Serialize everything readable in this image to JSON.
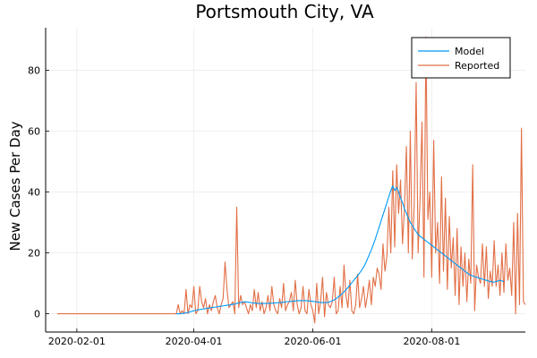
{
  "chart_data": {
    "type": "line",
    "title": "Portsmouth City, VA",
    "xlabel": "",
    "ylabel": "New Cases Per Day",
    "x_start": "2020-01-22",
    "xlim": [
      "2020-01-16",
      "2020-09-18"
    ],
    "ylim": [
      -6,
      94
    ],
    "x_ticks": [
      "2020-02-01",
      "2020-04-01",
      "2020-06-01",
      "2020-08-01"
    ],
    "y_ticks": [
      0,
      20,
      40,
      60,
      80
    ],
    "grid": true,
    "legend_position": "top-right",
    "series": [
      {
        "name": "Model",
        "color": "#009AFA",
        "x_start": "2020-03-23",
        "values": [
          0,
          0,
          0,
          0.1,
          0.2,
          0.3,
          0.5,
          0.6,
          0.8,
          1.0,
          1.1,
          1.3,
          1.4,
          1.5,
          1.6,
          1.7,
          1.8,
          1.9,
          2.0,
          2.1,
          2.2,
          2.3,
          2.4,
          2.5,
          2.6,
          2.7,
          2.8,
          2.9,
          3.0,
          3.1,
          3.2,
          3.4,
          3.6,
          3.7,
          3.8,
          3.9,
          3.9,
          3.8,
          3.7,
          3.6,
          3.5,
          3.5,
          3.4,
          3.4,
          3.4,
          3.4,
          3.4,
          3.4,
          3.5,
          3.5,
          3.5,
          3.6,
          3.6,
          3.7,
          3.7,
          3.8,
          3.9,
          4.0,
          4.0,
          4.1,
          4.2,
          4.2,
          4.3,
          4.3,
          4.3,
          4.3,
          4.3,
          4.3,
          4.2,
          4.2,
          4.1,
          4.0,
          3.9,
          3.8,
          3.7,
          3.7,
          3.7,
          3.7,
          3.8,
          4.0,
          4.3,
          4.6,
          5.0,
          5.5,
          6.0,
          6.6,
          7.2,
          7.9,
          8.6,
          9.4,
          10.2,
          11.0,
          11.8,
          12.6,
          13.4,
          14.3,
          15.3,
          16.5,
          18.0,
          19.5,
          21.0,
          22.7,
          24.5,
          26.5,
          28.5,
          30.5,
          32.5,
          34.5,
          36.5,
          38.5,
          40.5,
          42.0,
          40.5,
          41.5,
          40.0,
          38.0,
          36.5,
          34.5,
          33.0,
          31.5,
          30.0,
          29.0,
          28.0,
          27.0,
          26.0,
          25.5,
          25.0,
          24.5,
          24.0,
          23.5,
          23.0,
          22.5,
          22.0,
          21.5,
          21.0,
          20.5,
          20.0,
          19.5,
          19.0,
          18.5,
          18.0,
          17.5,
          17.0,
          16.5,
          16.0,
          15.5,
          15.0,
          14.5,
          14.0,
          13.5,
          13.0,
          12.7,
          12.5,
          12.2,
          12.0,
          11.8,
          11.6,
          11.4,
          11.2,
          11.0,
          10.8,
          10.6,
          10.5,
          10.4,
          10.6,
          10.8,
          11.0,
          10.8,
          10.6
        ]
      },
      {
        "name": "Reported",
        "color": "#E26F46",
        "x_start": "2020-01-22",
        "values": [
          0,
          0,
          0,
          0,
          0,
          0,
          0,
          0,
          0,
          0,
          0,
          0,
          0,
          0,
          0,
          0,
          0,
          0,
          0,
          0,
          0,
          0,
          0,
          0,
          0,
          0,
          0,
          0,
          0,
          0,
          0,
          0,
          0,
          0,
          0,
          0,
          0,
          0,
          0,
          0,
          0,
          0,
          0,
          0,
          0,
          0,
          0,
          0,
          0,
          0,
          0,
          0,
          0,
          0,
          0,
          0,
          0,
          0,
          0,
          0,
          0,
          0,
          3,
          0,
          1,
          0,
          8,
          0,
          3,
          2,
          9,
          0,
          1,
          9,
          4,
          2,
          5,
          0,
          3,
          1,
          4,
          6,
          2,
          0,
          3,
          5,
          17,
          8,
          2,
          3,
          4,
          0,
          35,
          2,
          6,
          3,
          4,
          2,
          0,
          3,
          1,
          8,
          2,
          7,
          1,
          4,
          0,
          2,
          6,
          1,
          9,
          3,
          1,
          0,
          5,
          2,
          10,
          1,
          3,
          4,
          7,
          1,
          11,
          3,
          0,
          2,
          9,
          1,
          0,
          8,
          3,
          1,
          -3,
          10,
          0,
          4,
          12,
          -1,
          7,
          3,
          2,
          4,
          12,
          0,
          1,
          9,
          2,
          16,
          6,
          2,
          11,
          1,
          0,
          3,
          13,
          2,
          5,
          9,
          2,
          6,
          11,
          3,
          12,
          9,
          15,
          13,
          8,
          23,
          14,
          19,
          35,
          20,
          47,
          22,
          49,
          33,
          44,
          23,
          35,
          55,
          20,
          60,
          18,
          36,
          76,
          20,
          38,
          63,
          12,
          91,
          31,
          40,
          12,
          57,
          20,
          30,
          10,
          45,
          14,
          38,
          8,
          32,
          15,
          25,
          6,
          28,
          3,
          22,
          9,
          20,
          4,
          18,
          10,
          49,
          1,
          16,
          12,
          10,
          23,
          9,
          22,
          5,
          14,
          9,
          24,
          9,
          16,
          6,
          20,
          7,
          23,
          11,
          15,
          6,
          30,
          0,
          33,
          3,
          61,
          4,
          3
        ]
      }
    ]
  }
}
